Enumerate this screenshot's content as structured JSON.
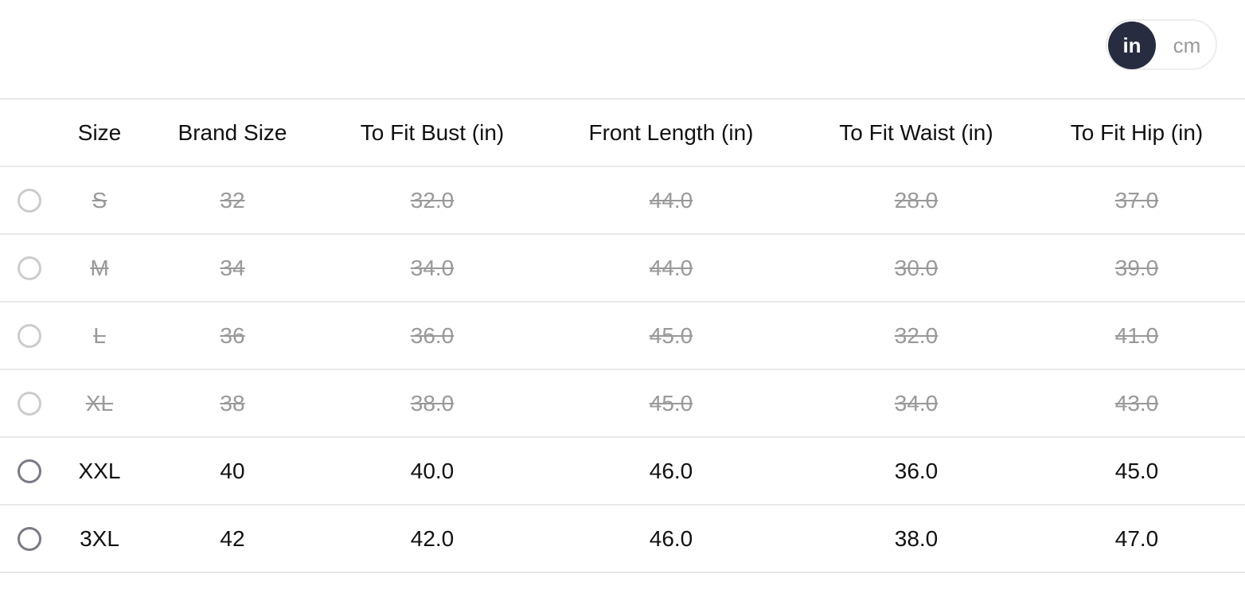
{
  "unit_toggle": {
    "options": [
      "in",
      "cm"
    ],
    "selected": "in",
    "active_color": "#282c40"
  },
  "table": {
    "headers": [
      "Size",
      "Brand Size",
      "To Fit Bust (in)",
      "Front Length (in)",
      "To Fit Waist (in)",
      "To Fit Hip (in)"
    ],
    "rows": [
      {
        "available": false,
        "cells": [
          "S",
          "32",
          "32.0",
          "44.0",
          "28.0",
          "37.0"
        ]
      },
      {
        "available": false,
        "cells": [
          "M",
          "34",
          "34.0",
          "44.0",
          "30.0",
          "39.0"
        ]
      },
      {
        "available": false,
        "cells": [
          "L",
          "36",
          "36.0",
          "45.0",
          "32.0",
          "41.0"
        ]
      },
      {
        "available": false,
        "cells": [
          "XL",
          "38",
          "38.0",
          "45.0",
          "34.0",
          "43.0"
        ]
      },
      {
        "available": true,
        "cells": [
          "XXL",
          "40",
          "40.0",
          "46.0",
          "36.0",
          "45.0"
        ]
      },
      {
        "available": true,
        "cells": [
          "3XL",
          "42",
          "42.0",
          "46.0",
          "38.0",
          "47.0"
        ]
      }
    ]
  }
}
